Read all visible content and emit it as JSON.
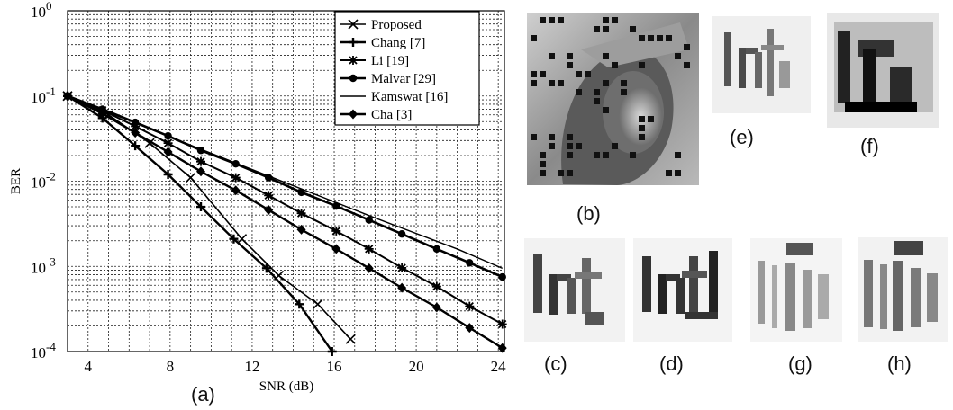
{
  "chart_data": {
    "type": "line",
    "ylabel": "BER",
    "xlabel": "SNR (dB)",
    "yscale": "log",
    "xlim": [
      3,
      24.3
    ],
    "ylim": [
      0.0001,
      1
    ],
    "xticks": [
      "4",
      "8",
      "12",
      "16",
      "20",
      "24"
    ],
    "yticks": [
      {
        "base": "10",
        "exp": "0"
      },
      {
        "base": "10",
        "exp": "-1"
      },
      {
        "base": "10",
        "exp": "-2"
      },
      {
        "base": "10",
        "exp": "-3"
      },
      {
        "base": "10",
        "exp": "-4"
      }
    ],
    "grid": true,
    "legend_position": "top-right",
    "series": [
      {
        "name": "Proposed",
        "marker": "x",
        "x": [
          3,
          5,
          7,
          9,
          11.5,
          13.3,
          15.2,
          16.8
        ],
        "y": [
          0.1,
          0.06,
          0.028,
          0.011,
          0.0021,
          0.00078,
          0.00036,
          0.00014
        ]
      },
      {
        "name": "Chang [7]",
        "marker": "cross-bar",
        "x": [
          3,
          4.7,
          6.3,
          7.9,
          9.5,
          11.1,
          12.7,
          14.3,
          15.9
        ],
        "y": [
          0.1,
          0.055,
          0.026,
          0.012,
          0.005,
          0.0021,
          0.00095,
          0.00036,
          0.0001
        ]
      },
      {
        "name": "Li [19]",
        "marker": "star",
        "x": [
          3,
          4.7,
          6.3,
          7.9,
          9.5,
          11.2,
          12.8,
          14.4,
          16.1,
          17.7,
          19.3,
          21,
          22.6,
          24.2
        ],
        "y": [
          0.1,
          0.068,
          0.044,
          0.028,
          0.017,
          0.011,
          0.0068,
          0.0042,
          0.0026,
          0.0016,
          0.00096,
          0.00058,
          0.00034,
          0.00021
        ]
      },
      {
        "name": "Malvar [29]",
        "marker": "dot",
        "x": [
          3,
          4.7,
          6.3,
          7.9,
          9.5,
          11.2,
          12.8,
          14.4,
          16.1,
          17.7,
          19.3,
          21,
          22.6,
          24.2
        ],
        "y": [
          0.1,
          0.07,
          0.049,
          0.034,
          0.023,
          0.016,
          0.011,
          0.0074,
          0.0051,
          0.0035,
          0.0024,
          0.0016,
          0.0011,
          0.00075
        ]
      },
      {
        "name": "Kamswat [16]",
        "marker": "none",
        "x": [
          3,
          8,
          13,
          18,
          22,
          24.2
        ],
        "y": [
          0.1,
          0.033,
          0.011,
          0.0037,
          0.0016,
          0.00095
        ]
      },
      {
        "name": "Cha [3]",
        "marker": "diamond",
        "x": [
          3,
          4.7,
          6.3,
          7.9,
          9.5,
          11.2,
          12.8,
          14.4,
          16.1,
          17.7,
          19.3,
          21,
          22.6,
          24.2
        ],
        "y": [
          0.1,
          0.062,
          0.037,
          0.022,
          0.013,
          0.0078,
          0.0046,
          0.0027,
          0.0016,
          0.00095,
          0.00056,
          0.00033,
          0.00019,
          0.00011
        ]
      }
    ]
  },
  "labels": {
    "a": "(a)",
    "b": "(b)",
    "c": "(c)",
    "d": "(d)",
    "e": "(e)",
    "f": "(f)",
    "g": "(g)",
    "h": "(h)"
  }
}
